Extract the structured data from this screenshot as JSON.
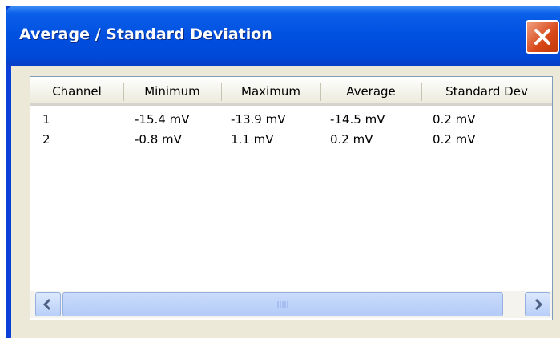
{
  "window": {
    "title": "Average / Standard Deviation"
  },
  "table": {
    "header": [
      "Channel",
      "Minimum",
      "Maximum",
      "Average",
      "Standard Dev"
    ],
    "rows": [
      [
        "1",
        "-15.4 mV",
        "-13.9 mV",
        "-14.5 mV",
        "0.2 mV"
      ],
      [
        "2",
        "-0.8 mV",
        "1.1 mV",
        "0.2 mV",
        "0.2 mV"
      ]
    ]
  }
}
